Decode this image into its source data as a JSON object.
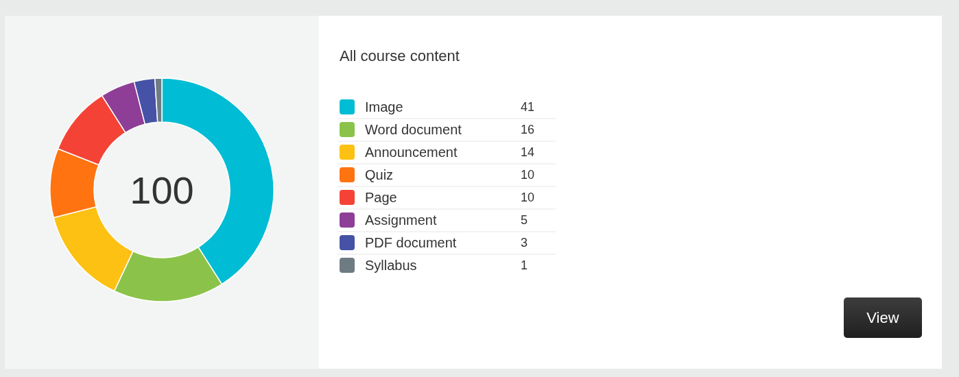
{
  "chart_data": {
    "type": "donut",
    "title": "All course content",
    "categories": [
      "Image",
      "Word document",
      "Announcement",
      "Quiz",
      "Page",
      "Assignment",
      "PDF document",
      "Syllabus"
    ],
    "values": [
      41,
      16,
      14,
      10,
      10,
      5,
      3,
      1
    ],
    "colors": [
      "#00bcd4",
      "#8bc34a",
      "#fdc113",
      "#ff7310",
      "#f44336",
      "#8e3e96",
      "#4652a6",
      "#6e7b83"
    ],
    "data_labels": true,
    "legend": "right",
    "annotations": [
      "100",
      "View"
    ]
  }
}
